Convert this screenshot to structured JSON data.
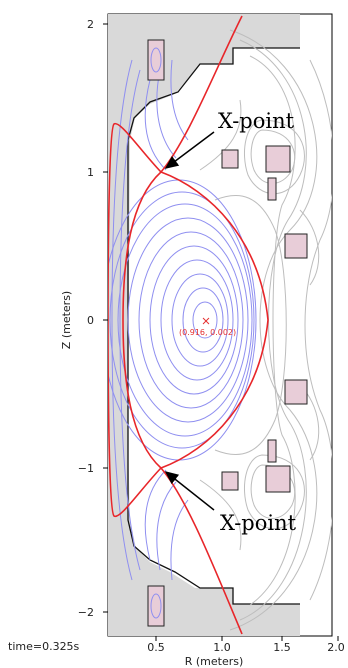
{
  "plot": {
    "xlabel": "R (meters)",
    "ylabel": "Z (meters)",
    "x_ticks": [
      "0.5",
      "1.0",
      "1.5",
      "2.0"
    ],
    "y_ticks": [
      "2",
      "1",
      "0",
      "−1",
      "−2"
    ],
    "time_label": "time=0.325s"
  },
  "annotations": {
    "xpoint_upper": "X-point",
    "xpoint_lower": "X-point",
    "magnetic_axis_label": "(0.916, 0.002)"
  },
  "colors": {
    "separatrix": "#e8262a",
    "closed_flux": "#8f8ff0",
    "open_flux": "#bdbdbd",
    "wall_fill": "#d9d9d9",
    "coil_fill": "#e8cdd8"
  }
}
